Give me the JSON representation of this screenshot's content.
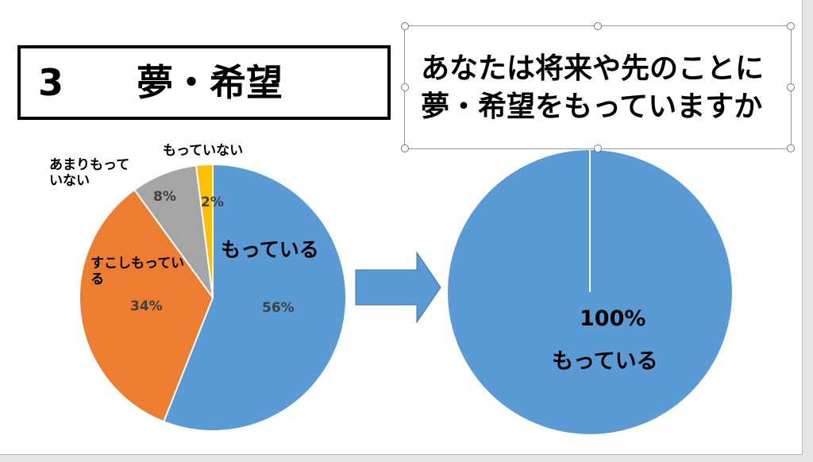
{
  "slide_title": "3　　夢・希望",
  "chart_data": [
    {
      "type": "pie",
      "categories": [
        "もっている",
        "すこしもっている",
        "あまりもっていない",
        "もっていない"
      ],
      "values": [
        56,
        34,
        8,
        2
      ],
      "value_labels": [
        "56%",
        "34%",
        "8%",
        "2%"
      ],
      "colors": [
        "#5b9bd5",
        "#ed7d31",
        "#a5a5a5",
        "#ffc000"
      ]
    },
    {
      "type": "pie",
      "title": "あなたは将来や先のことに夢・希望をもっていますか",
      "categories": [
        "もっている"
      ],
      "values": [
        100
      ],
      "value_labels": [
        "100%"
      ],
      "colors": [
        "#5b9bd5"
      ]
    }
  ]
}
